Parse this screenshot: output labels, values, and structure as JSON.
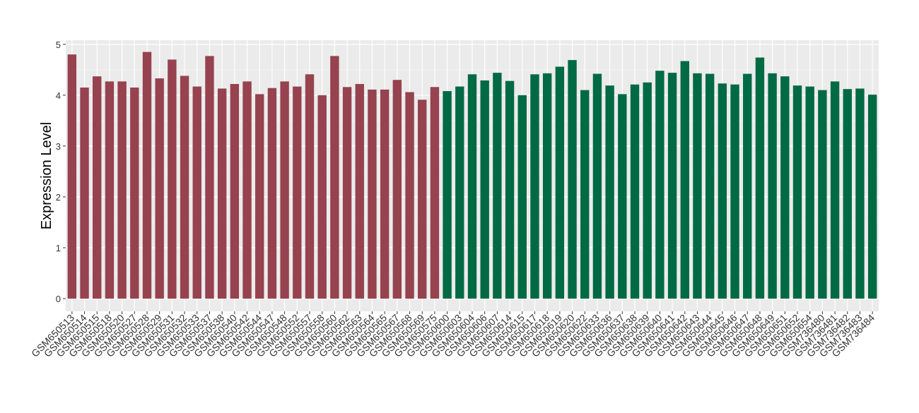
{
  "chart_data": {
    "type": "bar",
    "y_label": "Expression Level",
    "categories": [
      "GSM650513",
      "GSM650514",
      "GSM650515",
      "GSM650518",
      "GSM650520",
      "GSM650527",
      "GSM650528",
      "GSM650529",
      "GSM650531",
      "GSM650532",
      "GSM650533",
      "GSM650537",
      "GSM650538",
      "GSM650540",
      "GSM650542",
      "GSM650544",
      "GSM650547",
      "GSM650548",
      "GSM650552",
      "GSM650557",
      "GSM650558",
      "GSM650560",
      "GSM650562",
      "GSM650563",
      "GSM650564",
      "GSM650565",
      "GSM650567",
      "GSM650568",
      "GSM650569",
      "GSM650575",
      "GSM650600",
      "GSM650603",
      "GSM650604",
      "GSM650606",
      "GSM650607",
      "GSM650614",
      "GSM650615",
      "GSM650617",
      "GSM650618",
      "GSM650619",
      "GSM650620",
      "GSM650622",
      "GSM650633",
      "GSM650636",
      "GSM650637",
      "GSM650638",
      "GSM650639",
      "GSM650640",
      "GSM650641",
      "GSM650642",
      "GSM650643",
      "GSM650644",
      "GSM650645",
      "GSM650646",
      "GSM650647",
      "GSM650648",
      "GSM650649",
      "GSM650651",
      "GSM650652",
      "GSM650654",
      "GSM736480",
      "GSM736481",
      "GSM736482",
      "GSM736483",
      "GSM736484"
    ],
    "values": [
      4.8,
      4.15,
      4.37,
      4.27,
      4.27,
      4.15,
      4.85,
      4.33,
      4.7,
      4.38,
      4.17,
      4.77,
      4.13,
      4.22,
      4.27,
      4.02,
      4.14,
      4.27,
      4.17,
      4.41,
      4.0,
      4.77,
      4.16,
      4.22,
      4.11,
      4.11,
      4.3,
      4.06,
      3.91,
      4.16,
      4.08,
      4.17,
      4.41,
      4.29,
      4.44,
      4.28,
      4.0,
      4.41,
      4.43,
      4.56,
      4.69,
      4.1,
      4.42,
      4.19,
      4.02,
      4.21,
      4.25,
      4.48,
      4.44,
      4.67,
      4.43,
      4.42,
      4.23,
      4.21,
      4.42,
      4.74,
      4.43,
      4.37,
      4.19,
      4.17,
      4.1,
      4.27,
      4.12,
      4.13,
      4.01
    ],
    "colors": [
      "#96424f",
      "#96424f",
      "#96424f",
      "#96424f",
      "#96424f",
      "#96424f",
      "#96424f",
      "#96424f",
      "#96424f",
      "#96424f",
      "#96424f",
      "#96424f",
      "#96424f",
      "#96424f",
      "#96424f",
      "#96424f",
      "#96424f",
      "#96424f",
      "#96424f",
      "#96424f",
      "#96424f",
      "#96424f",
      "#96424f",
      "#96424f",
      "#96424f",
      "#96424f",
      "#96424f",
      "#96424f",
      "#96424f",
      "#96424f",
      "#006a45",
      "#006a45",
      "#006a45",
      "#006a45",
      "#006a45",
      "#006a45",
      "#006a45",
      "#006a45",
      "#006a45",
      "#006a45",
      "#006a45",
      "#006a45",
      "#006a45",
      "#006a45",
      "#006a45",
      "#006a45",
      "#006a45",
      "#006a45",
      "#006a45",
      "#006a45",
      "#006a45",
      "#006a45",
      "#006a45",
      "#006a45",
      "#006a45",
      "#006a45",
      "#006a45",
      "#006a45",
      "#006a45",
      "#006a45",
      "#006a45",
      "#006a45",
      "#006a45",
      "#006a45",
      "#006a45"
    ],
    "ylim": [
      -0.25,
      5.08
    ],
    "yticks": [
      0,
      1,
      2,
      3,
      4,
      5
    ],
    "grid": true
  }
}
